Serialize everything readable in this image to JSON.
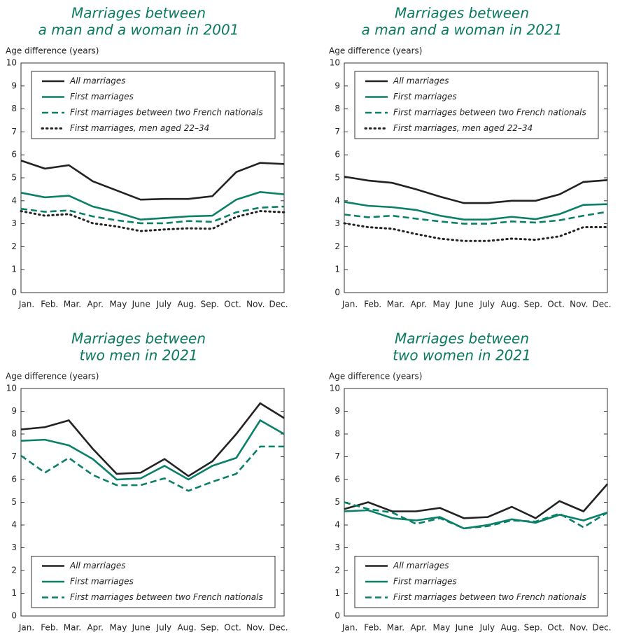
{
  "chart_data": [
    {
      "type": "line",
      "title": [
        "Marriages between",
        "a man and a woman in 2001"
      ],
      "y_label": "Age difference (years)",
      "categories": [
        "Jan.",
        "Feb.",
        "Mar.",
        "Apr.",
        "May",
        "June",
        "July",
        "Aug.",
        "Sep.",
        "Oct.",
        "Nov.",
        "Dec."
      ],
      "ylim": [
        0,
        10
      ],
      "yticks": [
        0,
        1,
        2,
        3,
        4,
        5,
        6,
        7,
        8,
        9,
        10
      ],
      "legend": "top",
      "series": [
        {
          "name": "All marriages",
          "color": "#222222",
          "dash": "solid",
          "values": [
            5.75,
            5.4,
            5.55,
            4.85,
            4.45,
            4.05,
            4.08,
            4.08,
            4.2,
            5.25,
            5.65,
            5.6
          ]
        },
        {
          "name": "First marriages",
          "color": "#0b8068",
          "dash": "solid",
          "values": [
            4.35,
            4.15,
            4.22,
            3.75,
            3.5,
            3.18,
            3.25,
            3.32,
            3.35,
            4.05,
            4.38,
            4.28
          ]
        },
        {
          "name": "First marriages between two French nationals",
          "color": "#0b8068",
          "dash": "dashed",
          "values": [
            3.65,
            3.52,
            3.58,
            3.32,
            3.15,
            3.02,
            3.02,
            3.12,
            3.08,
            3.5,
            3.7,
            3.75
          ]
        },
        {
          "name": "First marriages, men aged 22–34",
          "color": "#222222",
          "dash": "dotted",
          "values": [
            3.55,
            3.35,
            3.42,
            3.02,
            2.88,
            2.68,
            2.75,
            2.8,
            2.78,
            3.3,
            3.55,
            3.5
          ]
        }
      ]
    },
    {
      "type": "line",
      "title": [
        "Marriages between",
        "a man and a woman in 2021"
      ],
      "y_label": "Age difference (years)",
      "categories": [
        "Jan.",
        "Feb.",
        "Mar.",
        "Apr.",
        "May",
        "June",
        "July",
        "Aug.",
        "Sep.",
        "Oct.",
        "Nov.",
        "Dec."
      ],
      "ylim": [
        0,
        10
      ],
      "yticks": [
        0,
        1,
        2,
        3,
        4,
        5,
        6,
        7,
        8,
        9,
        10
      ],
      "legend": "top",
      "series": [
        {
          "name": "All marriages",
          "color": "#222222",
          "dash": "solid",
          "values": [
            5.05,
            4.88,
            4.78,
            4.5,
            4.18,
            3.9,
            3.9,
            4.0,
            4.0,
            4.28,
            4.82,
            4.9
          ]
        },
        {
          "name": "First marriages",
          "color": "#0b8068",
          "dash": "solid",
          "values": [
            3.95,
            3.78,
            3.72,
            3.6,
            3.35,
            3.18,
            3.18,
            3.3,
            3.2,
            3.42,
            3.82,
            3.85
          ]
        },
        {
          "name": "First marriages between two French nationals",
          "color": "#0b8068",
          "dash": "dashed",
          "values": [
            3.4,
            3.28,
            3.35,
            3.22,
            3.1,
            3.0,
            3.0,
            3.1,
            3.05,
            3.15,
            3.35,
            3.52
          ]
        },
        {
          "name": "First marriages, men aged 22–34",
          "color": "#222222",
          "dash": "dotted",
          "values": [
            3.02,
            2.85,
            2.78,
            2.55,
            2.35,
            2.25,
            2.25,
            2.35,
            2.3,
            2.45,
            2.85,
            2.85
          ]
        }
      ]
    },
    {
      "type": "line",
      "title": [
        "Marriages between",
        "two men in 2021"
      ],
      "y_label": "Age difference (years)",
      "categories": [
        "Jan.",
        "Feb.",
        "Mar.",
        "Apr.",
        "May",
        "June",
        "July",
        "Aug.",
        "Sep.",
        "Oct.",
        "Nov.",
        "Dec."
      ],
      "ylim": [
        0,
        10
      ],
      "yticks": [
        0,
        1,
        2,
        3,
        4,
        5,
        6,
        7,
        8,
        9,
        10
      ],
      "legend": "bottom",
      "series": [
        {
          "name": "All marriages",
          "color": "#222222",
          "dash": "solid",
          "values": [
            8.2,
            8.3,
            8.6,
            7.35,
            6.25,
            6.3,
            6.9,
            6.15,
            6.8,
            8.0,
            9.35,
            8.7
          ]
        },
        {
          "name": "First marriages",
          "color": "#0b8068",
          "dash": "solid",
          "values": [
            7.7,
            7.75,
            7.5,
            6.9,
            6.0,
            6.05,
            6.6,
            6.0,
            6.6,
            6.95,
            8.6,
            8.0
          ]
        },
        {
          "name": "First marriages between two French nationals",
          "color": "#0b8068",
          "dash": "dashed",
          "values": [
            7.05,
            6.3,
            6.95,
            6.2,
            5.75,
            5.75,
            6.05,
            5.5,
            5.9,
            6.25,
            7.45,
            7.45
          ]
        }
      ]
    },
    {
      "type": "line",
      "title": [
        "Marriages between",
        "two women in 2021"
      ],
      "y_label": "Age difference (years)",
      "categories": [
        "Jan.",
        "Feb.",
        "Mar.",
        "Apr.",
        "May",
        "June",
        "July",
        "Aug.",
        "Sep.",
        "Oct.",
        "Nov.",
        "Dec."
      ],
      "ylim": [
        0,
        10
      ],
      "yticks": [
        0,
        1,
        2,
        3,
        4,
        5,
        6,
        7,
        8,
        9,
        10
      ],
      "legend": "bottom",
      "series": [
        {
          "name": "All marriages",
          "color": "#222222",
          "dash": "solid",
          "values": [
            4.7,
            5.0,
            4.6,
            4.6,
            4.75,
            4.3,
            4.35,
            4.8,
            4.3,
            5.05,
            4.6,
            5.8
          ]
        },
        {
          "name": "First marriages",
          "color": "#0b8068",
          "dash": "solid",
          "values": [
            4.6,
            4.65,
            4.3,
            4.2,
            4.35,
            3.85,
            4.0,
            4.25,
            4.1,
            4.45,
            4.2,
            4.55
          ]
        },
        {
          "name": "First marriages between two French nationals",
          "color": "#0b8068",
          "dash": "dashed",
          "values": [
            5.0,
            4.7,
            4.55,
            4.05,
            4.3,
            3.85,
            3.95,
            4.2,
            4.15,
            4.5,
            3.9,
            4.55
          ]
        }
      ]
    }
  ]
}
